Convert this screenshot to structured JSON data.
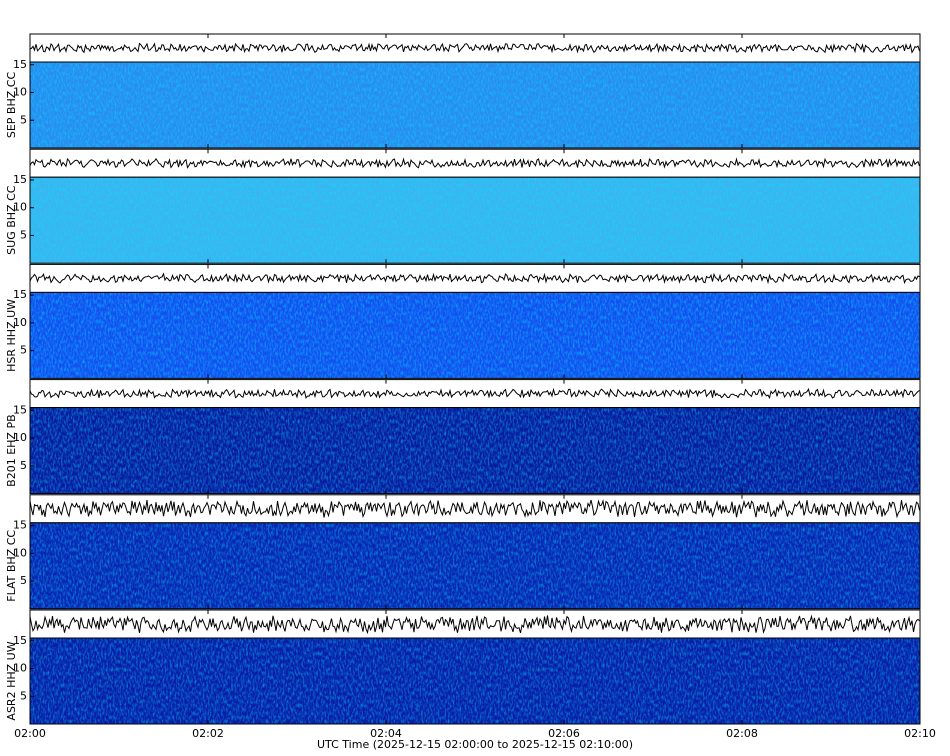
{
  "chart_data": {
    "type": "spectrogram",
    "xlabel": "UTC Time (2025-12-15 02:00:00 to 2025-12-15 02:10:00)",
    "xlim": [
      0,
      10
    ],
    "xticks": [
      {
        "value": 0,
        "label": "02:00"
      },
      {
        "value": 2,
        "label": "02:02"
      },
      {
        "value": 4,
        "label": "02:04"
      },
      {
        "value": 6,
        "label": "02:06"
      },
      {
        "value": 8,
        "label": "02:08"
      },
      {
        "value": 10,
        "label": "02:10"
      }
    ],
    "ylim": [
      0,
      15.5
    ],
    "yticks": [
      5,
      10,
      15
    ],
    "panels": [
      {
        "name": "SEP BHZ CC",
        "color": "#2a8cf0"
      },
      {
        "name": "SUG BHZ CC",
        "color": "#3cb4f0"
      },
      {
        "name": "HSR HHZ UW",
        "color": "#1450f0"
      },
      {
        "name": "B201 EHZ PB",
        "color": "#0a1aa0"
      },
      {
        "name": "FLAT BHZ CC",
        "color": "#0a24b4"
      },
      {
        "name": "ASR2 HHZ UW",
        "color": "#0a1ca8"
      }
    ]
  }
}
